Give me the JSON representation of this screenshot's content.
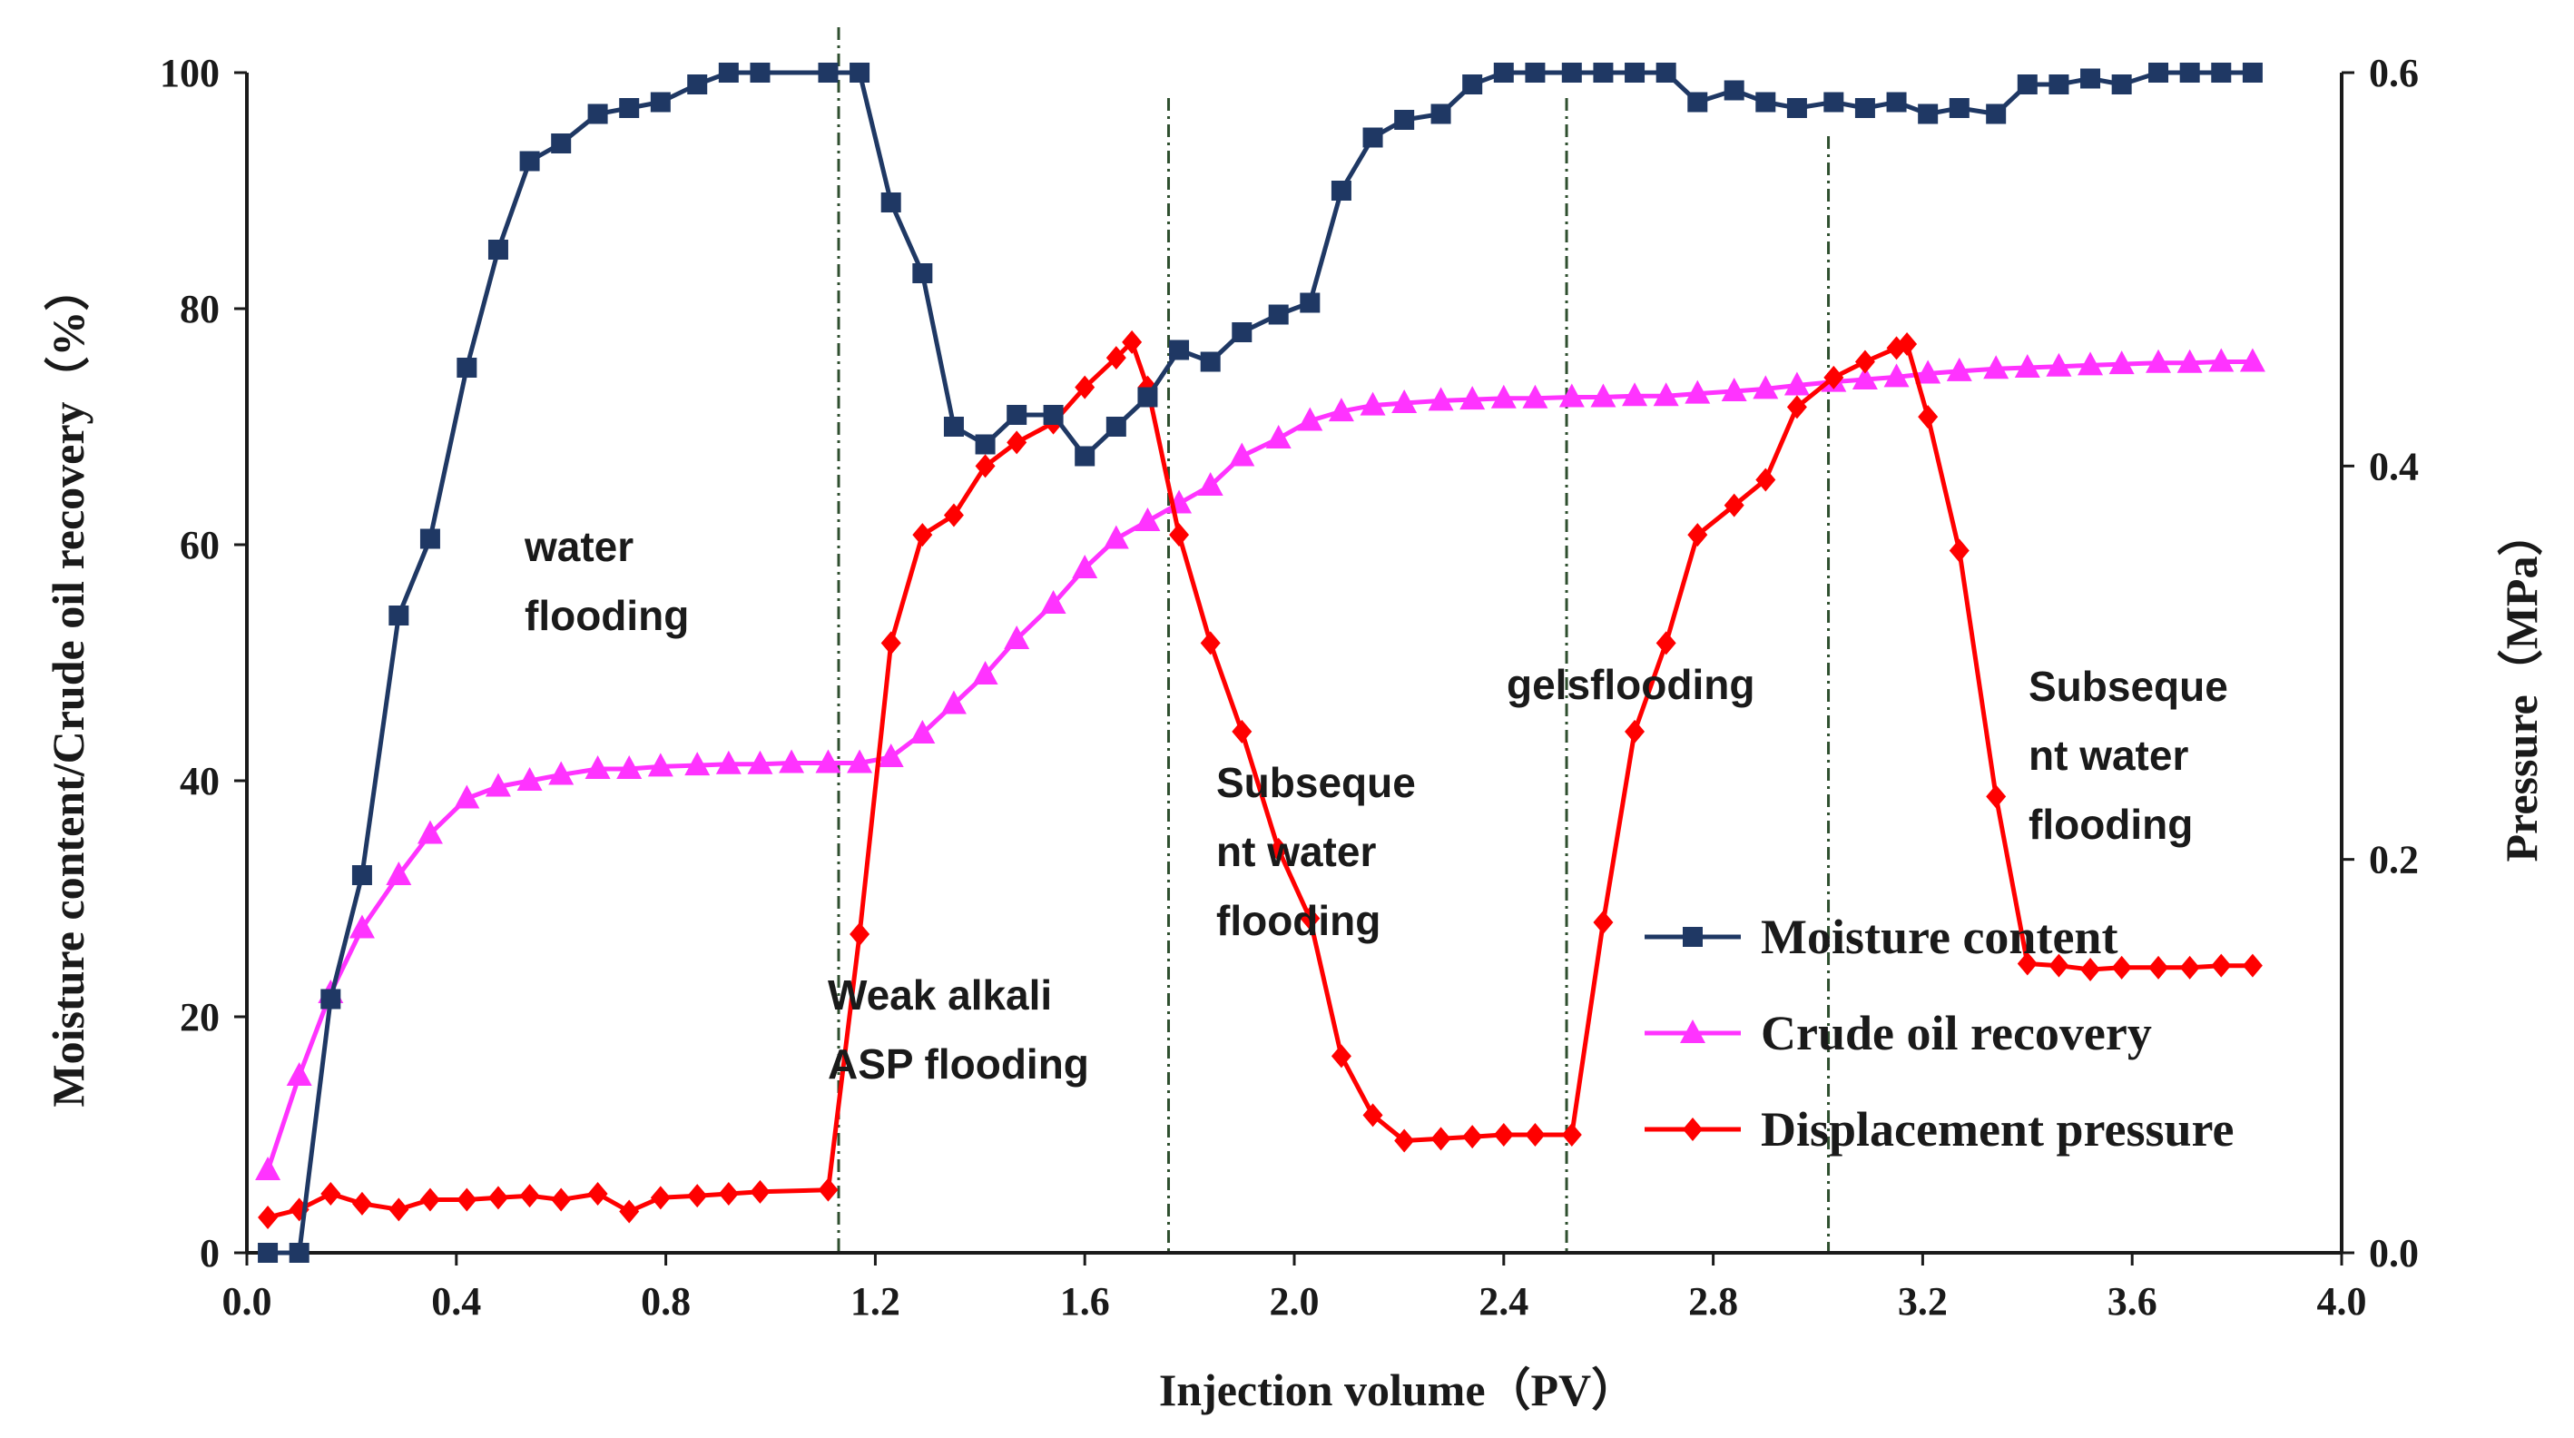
{
  "chart_data": {
    "type": "line",
    "title": "",
    "xlabel": "Injection volume（PV）",
    "ylabel_left": "Moisture content/Crude oil recovery（%）",
    "ylabel_right": "Pressure（MPa）",
    "xlim": [
      0.0,
      4.0
    ],
    "ylim_left": [
      0,
      100
    ],
    "ylim_right": [
      0.0,
      0.6
    ],
    "x_ticks": [
      "0.0",
      "0.4",
      "0.8",
      "1.2",
      "1.6",
      "2.0",
      "2.4",
      "2.8",
      "3.2",
      "3.6",
      "4.0"
    ],
    "y_left_ticks": [
      "0",
      "20",
      "40",
      "60",
      "80",
      "100"
    ],
    "y_right_ticks": [
      "0.0",
      "0.2",
      "0.4",
      "0.6"
    ],
    "grid": false,
    "legend_position": "lower-right",
    "colors": {
      "moisture": "#1f3864",
      "recovery": "#ff33ff",
      "pressure": "#ff0000",
      "divider": "#2f4f2f"
    },
    "dividers_x": [
      1.13,
      1.76,
      2.52,
      3.02
    ],
    "annotations": [
      {
        "lines": [
          "water",
          "flooding"
        ]
      },
      {
        "lines": [
          "Weak alkali",
          "ASP flooding"
        ]
      },
      {
        "lines": [
          "Subseque",
          "nt water",
          "flooding"
        ]
      },
      {
        "lines": [
          "gelsflooding"
        ]
      },
      {
        "lines": [
          "Subseque",
          "nt water",
          "flooding"
        ]
      }
    ],
    "series": [
      {
        "name": "Moisture content",
        "axis": "left",
        "marker": "square",
        "x": [
          0.04,
          0.1,
          0.16,
          0.22,
          0.29,
          0.35,
          0.42,
          0.48,
          0.54,
          0.6,
          0.67,
          0.73,
          0.79,
          0.86,
          0.92,
          0.98,
          1.11,
          1.17,
          1.23,
          1.29,
          1.35,
          1.41,
          1.47,
          1.54,
          1.6,
          1.66,
          1.72,
          1.78,
          1.84,
          1.9,
          1.97,
          2.03,
          2.09,
          2.15,
          2.21,
          2.28,
          2.34,
          2.4,
          2.46,
          2.53,
          2.59,
          2.65,
          2.71,
          2.77,
          2.84,
          2.9,
          2.96,
          3.03,
          3.09,
          3.15,
          3.21,
          3.27,
          3.34,
          3.4,
          3.46,
          3.52,
          3.58,
          3.65,
          3.71,
          3.77,
          3.83
        ],
        "values": [
          0,
          0,
          21.5,
          32,
          54,
          60.5,
          75,
          85,
          92.5,
          94,
          96.5,
          97,
          97.5,
          99,
          100,
          100,
          100,
          100,
          89,
          83,
          70,
          68.5,
          71,
          71,
          67.5,
          70,
          72.5,
          76.5,
          75.5,
          78,
          79.5,
          80.5,
          90,
          94.5,
          96,
          96.5,
          99,
          100,
          100,
          100,
          100,
          100,
          100,
          97.5,
          98.5,
          97.5,
          97,
          97.5,
          97,
          97.5,
          96.5,
          97,
          96.5,
          99,
          99,
          99.5,
          99,
          100,
          100,
          100,
          100
        ]
      },
      {
        "name": "Crude oil recovery",
        "axis": "left",
        "marker": "triangle",
        "x": [
          0.04,
          0.1,
          0.16,
          0.22,
          0.29,
          0.35,
          0.42,
          0.48,
          0.54,
          0.6,
          0.67,
          0.73,
          0.79,
          0.86,
          0.92,
          0.98,
          1.04,
          1.11,
          1.17,
          1.23,
          1.29,
          1.35,
          1.41,
          1.47,
          1.54,
          1.6,
          1.66,
          1.72,
          1.78,
          1.84,
          1.9,
          1.97,
          2.03,
          2.09,
          2.15,
          2.21,
          2.28,
          2.34,
          2.4,
          2.46,
          2.53,
          2.59,
          2.65,
          2.71,
          2.77,
          2.84,
          2.9,
          2.96,
          3.03,
          3.09,
          3.15,
          3.21,
          3.27,
          3.34,
          3.4,
          3.46,
          3.52,
          3.58,
          3.65,
          3.71,
          3.77,
          3.83
        ],
        "values": [
          7,
          15,
          22,
          27.5,
          32,
          35.5,
          38.5,
          39.5,
          40,
          40.5,
          41,
          41,
          41.2,
          41.3,
          41.4,
          41.4,
          41.5,
          41.5,
          41.5,
          42,
          44,
          46.5,
          49,
          52,
          55,
          58,
          60.5,
          62,
          63.5,
          65,
          67.5,
          69,
          70.5,
          71.3,
          71.8,
          72,
          72.2,
          72.3,
          72.4,
          72.4,
          72.5,
          72.5,
          72.6,
          72.6,
          72.8,
          73,
          73.2,
          73.5,
          73.8,
          74,
          74.2,
          74.5,
          74.7,
          74.9,
          75,
          75.1,
          75.2,
          75.3,
          75.4,
          75.4,
          75.5,
          75.5
        ]
      },
      {
        "name": "Displacement pressure",
        "axis": "right",
        "marker": "diamond",
        "x": [
          0.04,
          0.1,
          0.16,
          0.22,
          0.29,
          0.35,
          0.42,
          0.48,
          0.54,
          0.6,
          0.67,
          0.73,
          0.79,
          0.86,
          0.92,
          0.98,
          1.11,
          1.17,
          1.23,
          1.29,
          1.35,
          1.41,
          1.47,
          1.54,
          1.6,
          1.66,
          1.69,
          1.72,
          1.78,
          1.84,
          1.9,
          1.97,
          2.03,
          2.09,
          2.15,
          2.21,
          2.28,
          2.34,
          2.4,
          2.46,
          2.53,
          2.59,
          2.65,
          2.71,
          2.77,
          2.84,
          2.9,
          2.96,
          3.03,
          3.09,
          3.15,
          3.17,
          3.21,
          3.27,
          3.34,
          3.4,
          3.46,
          3.52,
          3.58,
          3.65,
          3.71,
          3.77,
          3.83
        ],
        "values": [
          0.018,
          0.022,
          0.03,
          0.025,
          0.022,
          0.027,
          0.027,
          0.028,
          0.029,
          0.027,
          0.03,
          0.021,
          0.028,
          0.029,
          0.03,
          0.031,
          0.032,
          0.162,
          0.31,
          0.365,
          0.375,
          0.4,
          0.412,
          0.422,
          0.44,
          0.455,
          0.463,
          0.44,
          0.365,
          0.31,
          0.265,
          0.205,
          0.17,
          0.1,
          0.07,
          0.057,
          0.058,
          0.059,
          0.06,
          0.06,
          0.06,
          0.168,
          0.265,
          0.31,
          0.365,
          0.38,
          0.393,
          0.43,
          0.445,
          0.453,
          0.46,
          0.462,
          0.425,
          0.357,
          0.232,
          0.147,
          0.146,
          0.144,
          0.145,
          0.145,
          0.145,
          0.146,
          0.146
        ]
      }
    ]
  }
}
